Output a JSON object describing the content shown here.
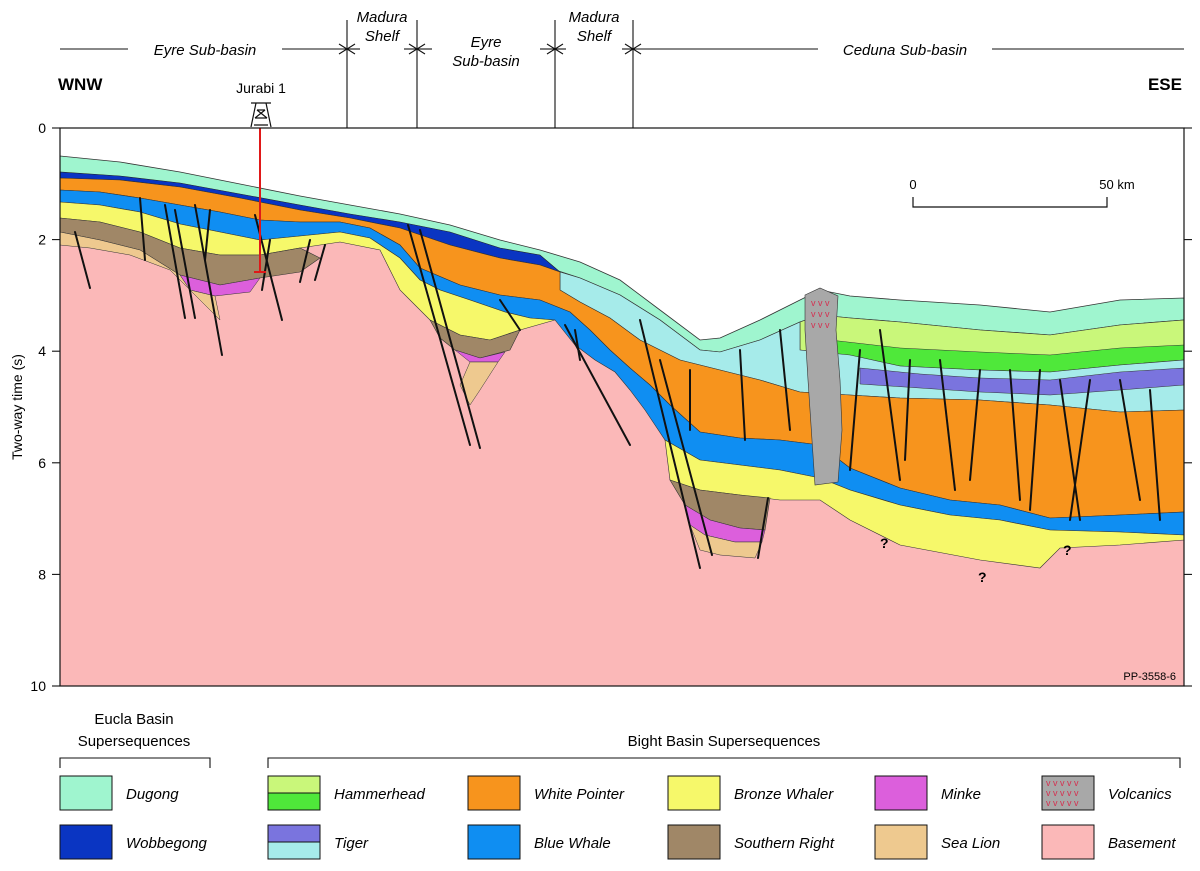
{
  "regions": [
    {
      "label_lines": [
        "Eyre Sub-basin"
      ]
    },
    {
      "label_lines": [
        "Madura",
        "Shelf"
      ]
    },
    {
      "label_lines": [
        "Eyre",
        "Sub-basin"
      ]
    },
    {
      "label_lines": [
        "Madura",
        "Shelf"
      ]
    },
    {
      "label_lines": [
        "Ceduna Sub-basin"
      ]
    }
  ],
  "direction": {
    "left": "WNW",
    "right": "ESE"
  },
  "well": {
    "name": "Jurabi 1"
  },
  "axis": {
    "label": "Two-way time (s)",
    "ticks": [
      "0",
      "2",
      "4",
      "6",
      "8",
      "10"
    ]
  },
  "scale_bar": {
    "start": "0",
    "end": "50 km"
  },
  "question_marks": [
    "?",
    "?",
    "?"
  ],
  "figure_id": "PP-3558-6",
  "legend": {
    "eucla_title_lines": [
      "Eucla Basin",
      "Supersequences"
    ],
    "bight_title": "Bight Basin Supersequences",
    "items": [
      {
        "name": "Dugong",
        "colors": [
          "#9ff5cf"
        ]
      },
      {
        "name": "Wobbegong",
        "colors": [
          "#0a35c2"
        ]
      },
      {
        "name": "Hammerhead",
        "colors": [
          "#c9f77a",
          "#4fe83a"
        ]
      },
      {
        "name": "Tiger",
        "colors": [
          "#7a74de",
          "#a6ebea"
        ]
      },
      {
        "name": "White Pointer",
        "colors": [
          "#f7941d"
        ]
      },
      {
        "name": "Blue Whale",
        "colors": [
          "#0f8ef2"
        ]
      },
      {
        "name": "Bronze Whaler",
        "colors": [
          "#f6f86a"
        ]
      },
      {
        "name": "Southern Right",
        "colors": [
          "#a08767"
        ]
      },
      {
        "name": "Minke",
        "colors": [
          "#dc5fdc"
        ]
      },
      {
        "name": "Sea Lion",
        "colors": [
          "#eec98f"
        ]
      },
      {
        "name": "Volcanics",
        "colors": [
          "#a8a8a8"
        ]
      },
      {
        "name": "Basement",
        "colors": [
          "#fbb8b8"
        ]
      }
    ]
  }
}
